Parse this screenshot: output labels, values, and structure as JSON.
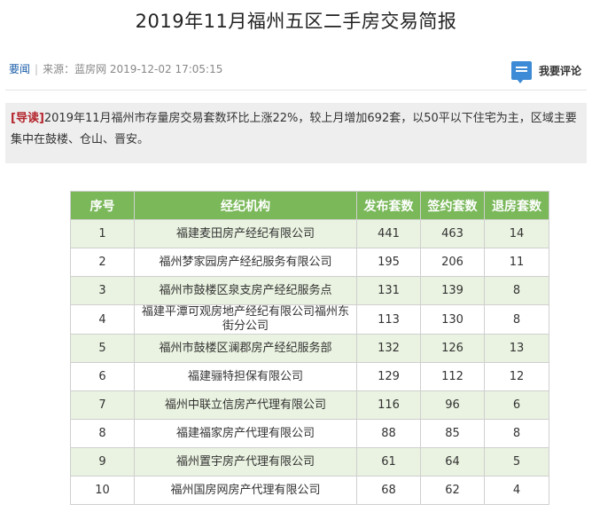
{
  "article": {
    "title": "2019年11月福州五区二手房交易简报",
    "category": "要闻",
    "source": "来源：蓝房网",
    "datetime": "2019-12-02 17:05:15",
    "comment_label": "我要评论",
    "lead_tag": "[导读]",
    "lead_text": "2019年11月福州市存量房交易套数环比上涨22%，较上月增加692套，以50平以下住宅为主，区域主要集中在鼓楼、仓山、晋安。"
  },
  "table": {
    "headers": [
      "序号",
      "经纪机构",
      "发布套数",
      "签约套数",
      "退房套数"
    ],
    "rows": [
      [
        "1",
        "福建麦田房产经纪有限公司",
        "441",
        "463",
        "14"
      ],
      [
        "2",
        "福州梦家园房产经纪服务有限公司",
        "195",
        "206",
        "11"
      ],
      [
        "3",
        "福州市鼓楼区泉支房产经纪服务点",
        "131",
        "139",
        "8"
      ],
      [
        "4",
        "福建平潭可观房地产经纪有限公司福州东街分公司",
        "113",
        "130",
        "8"
      ],
      [
        "5",
        "福州市鼓楼区澜郡房产经纪服务部",
        "132",
        "126",
        "13"
      ],
      [
        "6",
        "福建骊特担保有限公司",
        "129",
        "112",
        "12"
      ],
      [
        "7",
        "福州中联立信房产代理有限公司",
        "116",
        "96",
        "6"
      ],
      [
        "8",
        "福建福家房产代理有限公司",
        "88",
        "85",
        "8"
      ],
      [
        "9",
        "福州置宇房产代理有限公司",
        "61",
        "64",
        "5"
      ],
      [
        "10",
        "福州国房网房产代理有限公司",
        "68",
        "62",
        "4"
      ]
    ]
  },
  "colors": {
    "header_bg": "#7ab85a",
    "stripe_bg": "#eaf3e1",
    "lead_bg": "#eeeeee",
    "lead_tag": "#b3242b",
    "category_link": "#1a5da8",
    "comment_icon": "#3d8ad6"
  },
  "icons": {
    "comment": "speech-bubble-icon"
  }
}
